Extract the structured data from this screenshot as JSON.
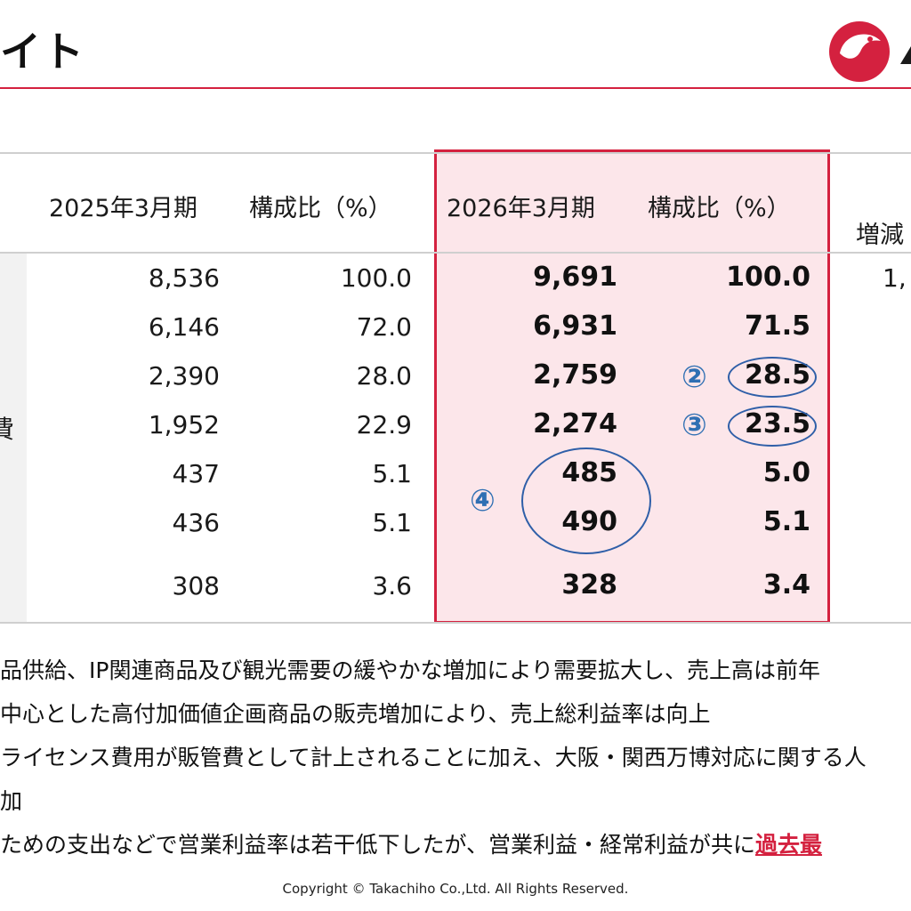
{
  "header": {
    "title_fragment": "イト",
    "logo": "takachiho-bird-logo",
    "brand_color": "#d4213f"
  },
  "table": {
    "columns": [
      "2025年3月期",
      "構成比（%）",
      "2026年3月期",
      "構成比（%）",
      "増減"
    ],
    "row_label_fragment": "費",
    "rows": [
      {
        "fy2025": "8,536",
        "ratio2025": "100.0",
        "fy2026": "9,691",
        "ratio2026": "100.0",
        "diff": "1,"
      },
      {
        "fy2025": "6,146",
        "ratio2025": "72.0",
        "fy2026": "6,931",
        "ratio2026": "71.5",
        "diff": ""
      },
      {
        "fy2025": "2,390",
        "ratio2025": "28.0",
        "fy2026": "2,759",
        "ratio2026": "28.5",
        "diff": ""
      },
      {
        "fy2025": "1,952",
        "ratio2025": "22.9",
        "fy2026": "2,274",
        "ratio2026": "23.5",
        "diff": ""
      },
      {
        "fy2025": "437",
        "ratio2025": "5.1",
        "fy2026": "485",
        "ratio2026": "5.0",
        "diff": ""
      },
      {
        "fy2025": "436",
        "ratio2025": "5.1",
        "fy2026": "490",
        "ratio2026": "5.1",
        "diff": ""
      },
      {
        "fy2025": "308",
        "ratio2025": "3.6",
        "fy2026": "328",
        "ratio2026": "3.4",
        "diff": ""
      }
    ],
    "markers": [
      "②",
      "③",
      "④"
    ],
    "highlight_color": "#fce6ea",
    "annotation_color": "#2f5fa8"
  },
  "notes": {
    "line1": "品供給、IP関連商品及び観光需要の緩やかな増加により需要拡大し、売上高は前年",
    "line2": "中心とした高付加価値企画商品の販売増加により、売上総利益率は向上",
    "line3": "ライセンス費用が販管費として計上されることに加え、大阪・関西万博対応に関する人",
    "line4": "加",
    "line5_prefix": "ための支出などで営業利益率は若干低下したが、営業利益・経常利益が共に",
    "line5_emph": "過去最"
  },
  "footer": {
    "copyright": "Copyright © Takachiho Co.,Ltd. All Rights Reserved."
  }
}
